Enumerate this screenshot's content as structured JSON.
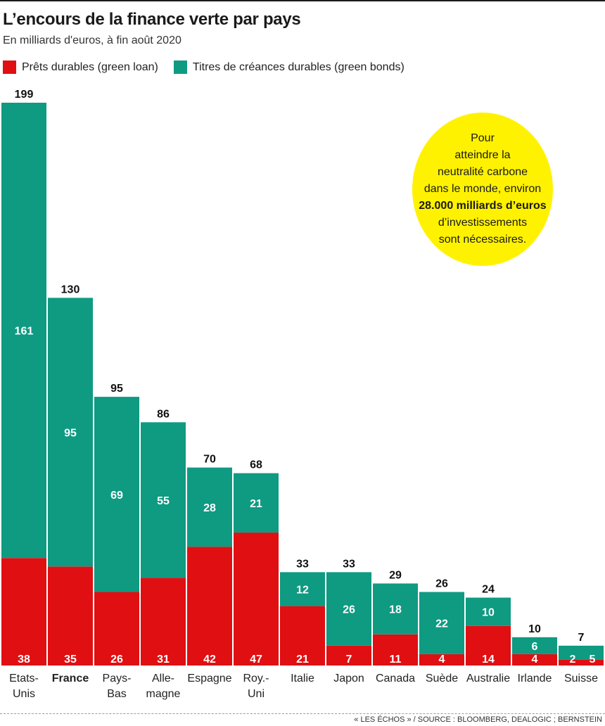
{
  "title": "L’encours de la finance verte par pays",
  "subtitle": "En milliards d'euros, à fin août 2020",
  "legend": [
    {
      "label": "Prêts durables (green loan)",
      "color": "#e00f12"
    },
    {
      "label": "Titres de créances durables (green bonds)",
      "color": "#0f9a82"
    }
  ],
  "callout": {
    "line_1": "Pour",
    "line_2": "atteindre la",
    "line_3": "neutralité carbone",
    "line_4": "dans le monde, environ",
    "strong": "28.000 milliards d’euros",
    "line_5": "d’investissements",
    "line_6": "sont nécessaires.",
    "color": "#fff200"
  },
  "source": "« LES ÉCHOS » / SOURCE : BLOOMBERG, DEALOGIC ; BERNSTEIN",
  "chart_data": {
    "type": "bar",
    "stacked": true,
    "highlighted_category": "France",
    "categories": [
      [
        "Etats-",
        "Unis"
      ],
      [
        "France"
      ],
      [
        "Pays-",
        "Bas"
      ],
      [
        "Alle-",
        "magne"
      ],
      [
        "Espagne"
      ],
      [
        "Roy.-",
        "Uni"
      ],
      [
        "Italie"
      ],
      [
        "Japon"
      ],
      [
        "Canada"
      ],
      [
        "Suède"
      ],
      [
        "Australie"
      ],
      [
        "Irlande"
      ],
      [
        "Suisse"
      ]
    ],
    "series": [
      {
        "name": "Prêts durables (green loan)",
        "color": "#e00f12",
        "values": [
          38,
          35,
          26,
          31,
          42,
          47,
          21,
          7,
          11,
          4,
          14,
          4,
          2
        ]
      },
      {
        "name": "Titres de créances durables (green bonds)",
        "color": "#0f9a82",
        "values": [
          161,
          95,
          69,
          55,
          28,
          21,
          12,
          26,
          18,
          22,
          10,
          6,
          5
        ]
      }
    ],
    "totals": [
      199,
      130,
      95,
      86,
      70,
      68,
      33,
      33,
      29,
      26,
      24,
      10,
      7
    ],
    "ylim": [
      0,
      199
    ]
  }
}
